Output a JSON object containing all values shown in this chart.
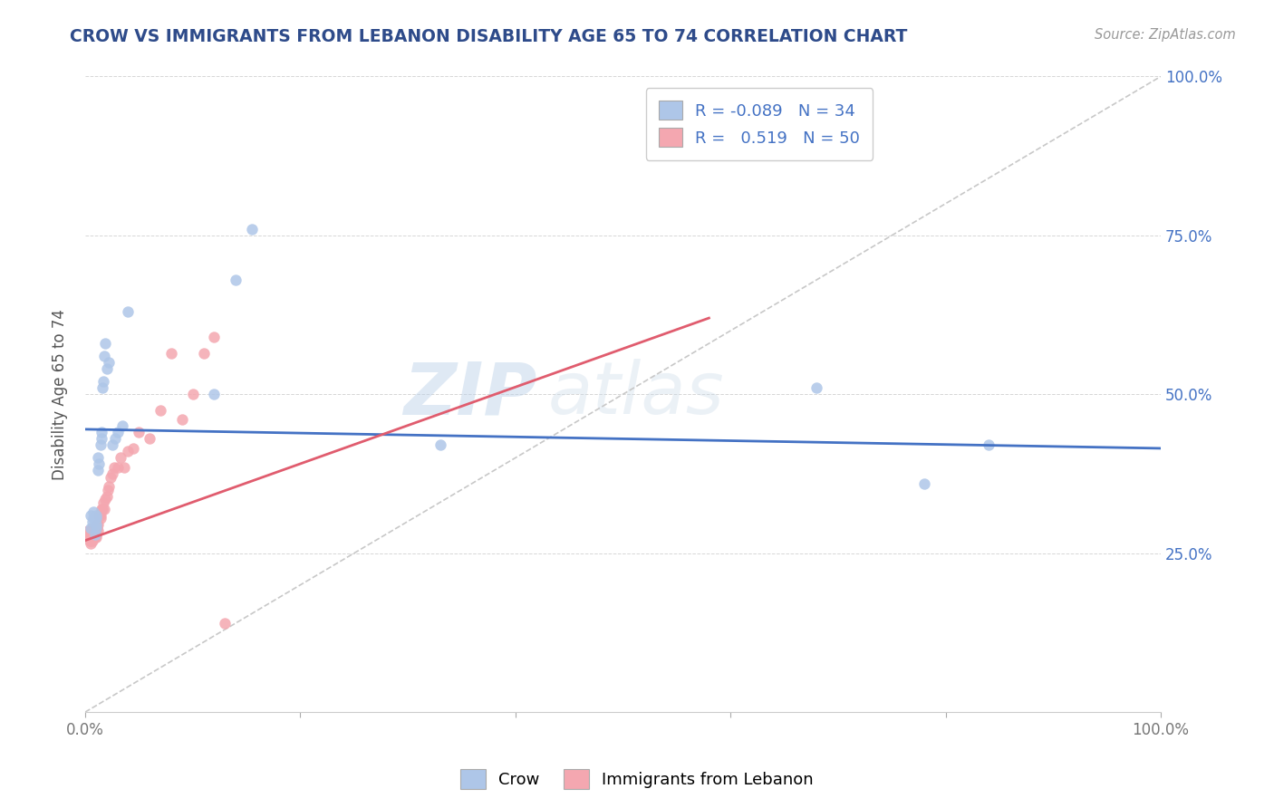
{
  "title": "CROW VS IMMIGRANTS FROM LEBANON DISABILITY AGE 65 TO 74 CORRELATION CHART",
  "source": "Source: ZipAtlas.com",
  "ylabel": "Disability Age 65 to 74",
  "legend_label_1": "Crow",
  "legend_label_2": "Immigrants from Lebanon",
  "r1": -0.089,
  "n1": 34,
  "r2": 0.519,
  "n2": 50,
  "xlim": [
    0.0,
    1.0
  ],
  "ylim": [
    0.0,
    1.0
  ],
  "color1": "#aec6e8",
  "color2": "#f4a7b0",
  "trendline1_color": "#4472c4",
  "trendline2_color": "#e05c6e",
  "diagonal_color": "#c8c8c8",
  "watermark_zip": "ZIP",
  "watermark_atlas": "atlas",
  "background_color": "#ffffff",
  "crow_x": [
    0.005,
    0.005,
    0.007,
    0.008,
    0.008,
    0.009,
    0.01,
    0.01,
    0.01,
    0.01,
    0.012,
    0.012,
    0.013,
    0.014,
    0.015,
    0.015,
    0.016,
    0.017,
    0.018,
    0.019,
    0.02,
    0.022,
    0.025,
    0.028,
    0.03,
    0.035,
    0.04,
    0.12,
    0.14,
    0.155,
    0.33,
    0.68,
    0.78,
    0.84
  ],
  "crow_y": [
    0.29,
    0.31,
    0.3,
    0.305,
    0.315,
    0.28,
    0.29,
    0.295,
    0.305,
    0.31,
    0.38,
    0.4,
    0.39,
    0.42,
    0.43,
    0.44,
    0.51,
    0.52,
    0.56,
    0.58,
    0.54,
    0.55,
    0.42,
    0.43,
    0.44,
    0.45,
    0.63,
    0.5,
    0.68,
    0.76,
    0.42,
    0.51,
    0.36,
    0.42
  ],
  "leb_x": [
    0.003,
    0.003,
    0.004,
    0.004,
    0.005,
    0.005,
    0.005,
    0.006,
    0.006,
    0.007,
    0.007,
    0.007,
    0.008,
    0.008,
    0.009,
    0.009,
    0.01,
    0.01,
    0.011,
    0.011,
    0.012,
    0.012,
    0.013,
    0.014,
    0.014,
    0.015,
    0.016,
    0.017,
    0.018,
    0.019,
    0.02,
    0.021,
    0.022,
    0.024,
    0.025,
    0.027,
    0.03,
    0.033,
    0.036,
    0.04,
    0.045,
    0.05,
    0.06,
    0.07,
    0.08,
    0.09,
    0.1,
    0.11,
    0.12,
    0.13
  ],
  "leb_y": [
    0.275,
    0.285,
    0.27,
    0.28,
    0.265,
    0.275,
    0.285,
    0.27,
    0.28,
    0.27,
    0.28,
    0.29,
    0.28,
    0.29,
    0.275,
    0.285,
    0.275,
    0.28,
    0.29,
    0.295,
    0.285,
    0.295,
    0.31,
    0.305,
    0.31,
    0.32,
    0.32,
    0.33,
    0.32,
    0.335,
    0.34,
    0.35,
    0.355,
    0.37,
    0.375,
    0.385,
    0.385,
    0.4,
    0.385,
    0.41,
    0.415,
    0.44,
    0.43,
    0.475,
    0.565,
    0.46,
    0.5,
    0.565,
    0.59,
    0.14
  ]
}
